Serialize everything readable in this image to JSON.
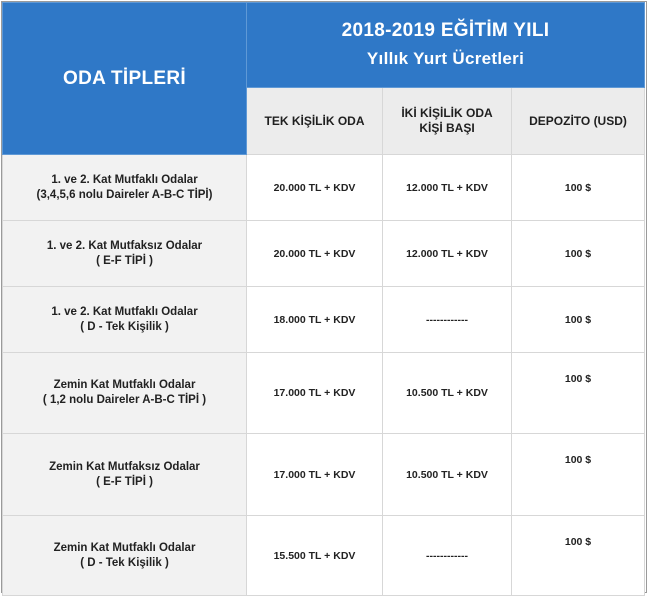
{
  "header": {
    "title_line1": "2018-2019 EĞİTİM YILI",
    "title_line2": "Yıllık Yurt Ücretleri",
    "oda_tipleri": "ODA TİPLERİ",
    "columns": [
      "TEK KİŞİLİK ODA",
      "İKİ KİŞİLİK ODA",
      "KİŞİ BAŞI",
      "DEPOZİTO (USD)"
    ]
  },
  "rows": [
    {
      "line1": "1. ve 2. Kat Mutfaklı Odalar",
      "line2": "(3,4,5,6 nolu Daireler A-B-C TİPİ)",
      "tek": "20.000 TL + KDV",
      "iki": "12.000 TL + KDV",
      "dep": "100 $"
    },
    {
      "line1": "1. ve 2. Kat Mutfaksız Odalar",
      "line2": "( E-F TİPİ )",
      "tek": "20.000 TL + KDV",
      "iki": "12.000 TL + KDV",
      "dep": "100 $"
    },
    {
      "line1": "1. ve 2. Kat Mutfaklı Odalar",
      "line2": "( D - Tek Kişilik )",
      "tek": "18.000 TL + KDV",
      "iki": "------------",
      "dep": "100 $"
    },
    {
      "line1": "Zemin Kat Mutfaklı Odalar",
      "line2": "( 1,2 nolu Daireler  A-B-C TİPİ )",
      "tek": "17.000 TL + KDV",
      "iki": "10.500 TL + KDV",
      "dep": "100 $"
    },
    {
      "line1": "Zemin Kat Mutfaksız Odalar",
      "line2": "( E-F TİPİ )",
      "tek": "17.000 TL + KDV",
      "iki": "10.500 TL + KDV",
      "dep": "100 $"
    },
    {
      "line1": "Zemin Kat Mutfaklı Odalar",
      "line2": "( D - Tek Kişilik )",
      "tek": "15.500 TL + KDV",
      "iki": "------------",
      "dep": "100 $"
    }
  ]
}
